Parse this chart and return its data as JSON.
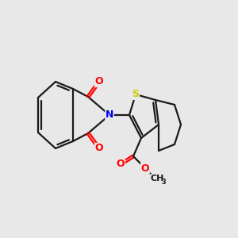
{
  "background_color": "#e8e8e8",
  "bond_color": "#1a1a1a",
  "atom_colors": {
    "O": "#ff0000",
    "N": "#0000ee",
    "S": "#cccc00",
    "C": "#1a1a1a"
  },
  "figsize": [
    3.0,
    3.0
  ],
  "dpi": 100,
  "lw": 1.6
}
